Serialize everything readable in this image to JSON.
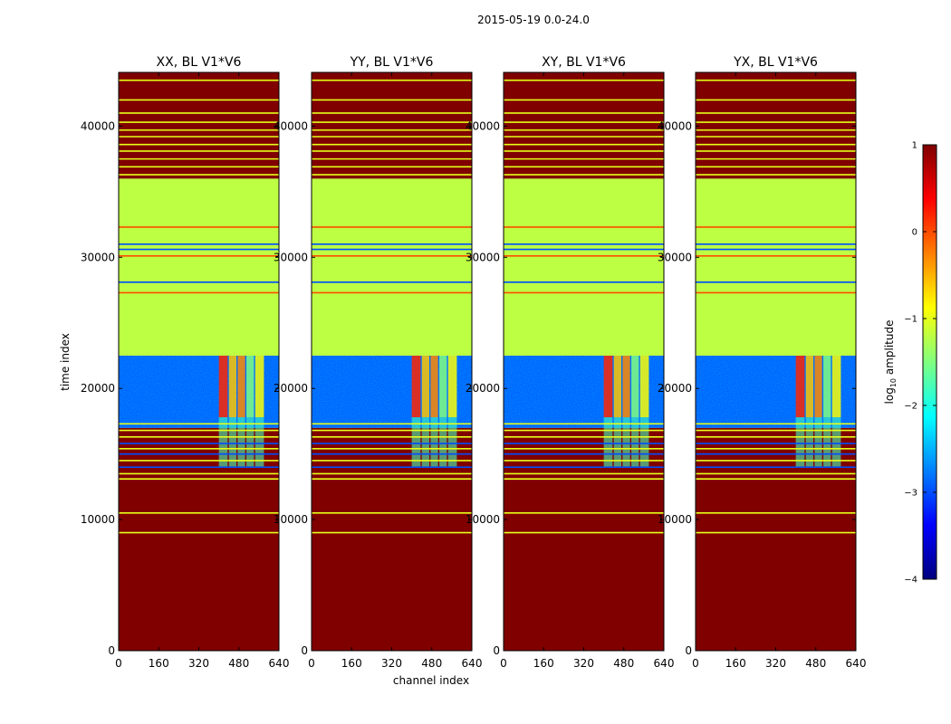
{
  "figure": {
    "suptitle": "2015-05-19 0.0-24.0",
    "xlabel": "channel index",
    "ylabel": "time index",
    "colorbar_label_main": "log",
    "colorbar_label_sub": "10",
    "colorbar_label_tail": " amplitude"
  },
  "chart_data": {
    "type": "heatmap",
    "colormap": "jet",
    "color_range": [
      -4,
      1
    ],
    "colorbar_ticks": [
      "1",
      "0",
      "−1",
      "−2",
      "−3",
      "−4"
    ],
    "x_ticks": [
      "0",
      "160",
      "320",
      "480",
      "640"
    ],
    "y_ticks": [
      "0",
      "10000",
      "20000",
      "30000",
      "40000"
    ],
    "xlim": [
      0,
      640
    ],
    "ylim": [
      0,
      44100
    ],
    "panels": [
      {
        "title": "XX, BL V1*V6",
        "id": "xx"
      },
      {
        "title": "YY, BL V1*V6",
        "id": "yy"
      },
      {
        "title": "XY, BL V1*V6",
        "id": "xy"
      },
      {
        "title": "YX, BL V1*V6",
        "id": "yx"
      }
    ],
    "regions_log10_amplitude": [
      {
        "t_from": 0,
        "t_to": 13000,
        "value": 1
      },
      {
        "t_from": 13000,
        "t_to": 17000,
        "value": 1,
        "note": "banded with thin yellow/blue lines"
      },
      {
        "t_from": 17000,
        "t_to": 22500,
        "value": -3,
        "note": "noisy blue region; channels ~400-580 at -1 to 0 in bands"
      },
      {
        "t_from": 22500,
        "t_to": 36000,
        "value": -1.2,
        "note": "green plateau with blue flagged bands near 28000 and 31000"
      },
      {
        "t_from": 36000,
        "t_to": 44100,
        "value": 1,
        "note": "banded with thin yellow lines"
      }
    ],
    "thin_lines": [
      {
        "t": 9000,
        "value": -1
      },
      {
        "t": 10500,
        "value": -1
      },
      {
        "t": 13100,
        "value": -1
      },
      {
        "t": 13500,
        "value": -1
      },
      {
        "t": 14000,
        "value": -3
      },
      {
        "t": 14500,
        "value": -1
      },
      {
        "t": 15000,
        "value": -3
      },
      {
        "t": 15400,
        "value": -1
      },
      {
        "t": 15800,
        "value": -3
      },
      {
        "t": 16300,
        "value": -1
      },
      {
        "t": 16800,
        "value": -1
      },
      {
        "t": 17300,
        "value": -1
      },
      {
        "t": 27300,
        "value": 0
      },
      {
        "t": 28100,
        "value": -3
      },
      {
        "t": 30100,
        "value": 0
      },
      {
        "t": 30600,
        "value": -3
      },
      {
        "t": 31000,
        "value": -3
      },
      {
        "t": 32300,
        "value": 0
      },
      {
        "t": 36300,
        "value": -1
      },
      {
        "t": 36900,
        "value": -1
      },
      {
        "t": 37500,
        "value": -1
      },
      {
        "t": 38100,
        "value": -1
      },
      {
        "t": 38600,
        "value": -1
      },
      {
        "t": 39200,
        "value": -1
      },
      {
        "t": 39700,
        "value": -1
      },
      {
        "t": 40300,
        "value": -1
      },
      {
        "t": 41000,
        "value": -1
      },
      {
        "t": 42000,
        "value": -1
      },
      {
        "t": 43500,
        "value": -1
      }
    ],
    "channel_bands": [
      {
        "c_from": 400,
        "c_to": 435,
        "value": 0.2
      },
      {
        "c_from": 440,
        "c_to": 470,
        "value": -0.6
      },
      {
        "c_from": 475,
        "c_to": 505,
        "value": -0.3
      },
      {
        "c_from": 510,
        "c_to": 540,
        "value": -1.5
      },
      {
        "c_from": 545,
        "c_to": 580,
        "value": -0.9
      }
    ]
  }
}
